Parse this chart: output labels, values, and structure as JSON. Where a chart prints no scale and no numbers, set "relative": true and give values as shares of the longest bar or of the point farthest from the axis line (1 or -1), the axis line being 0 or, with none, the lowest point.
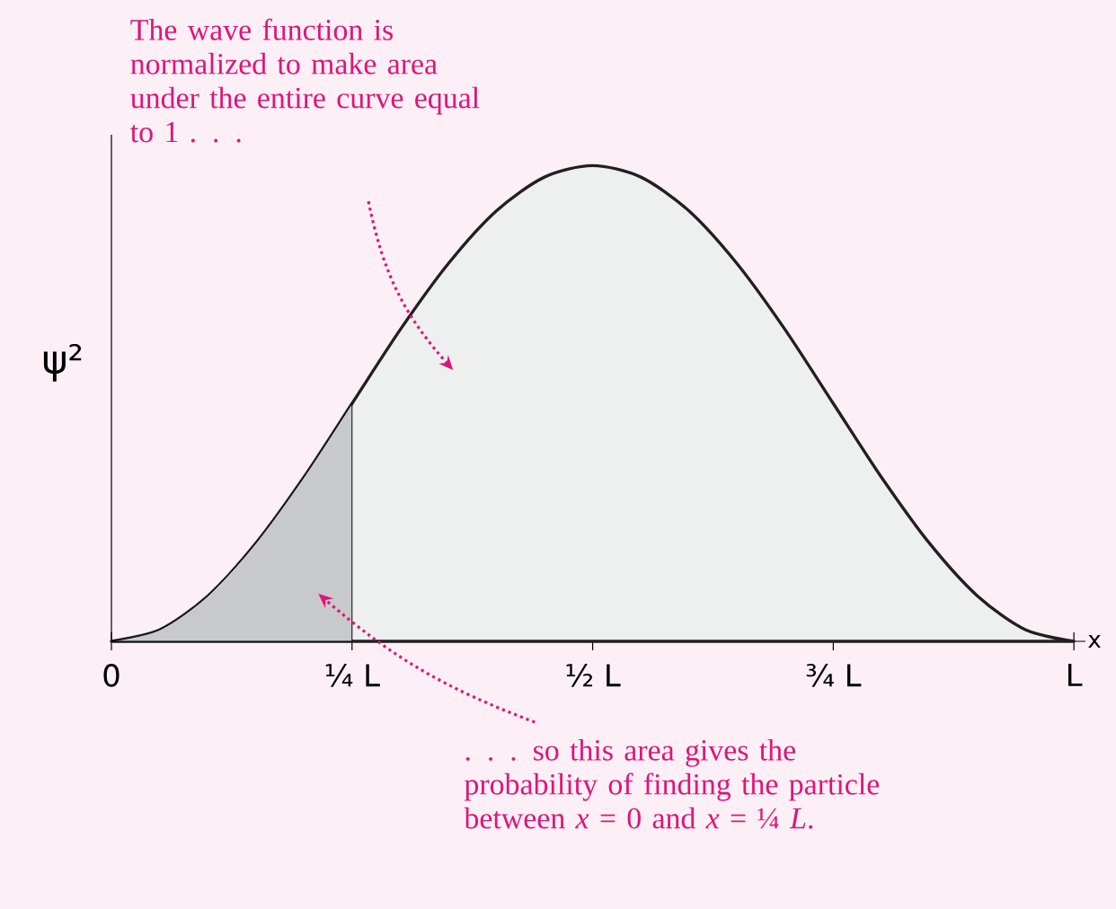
{
  "chart_data": {
    "type": "area",
    "relative": true,
    "xlabel": "x",
    "ylabel": "ψ²",
    "categories": [
      "0",
      null,
      null,
      null,
      null,
      "¼ L",
      null,
      null,
      null,
      null,
      "½ L",
      null,
      null,
      null,
      null,
      "¾ L",
      null,
      null,
      null,
      null,
      "L"
    ],
    "series": [
      {
        "color": "#eef0ef",
        "values": [
          0,
          0.024,
          0.095,
          0.206,
          0.345,
          0.5,
          0.655,
          0.794,
          0.905,
          0.976,
          1,
          0.976,
          0.905,
          0.794,
          0.655,
          0.5,
          0.345,
          0.206,
          0.095,
          0.024,
          0
        ]
      },
      {
        "color": "#c8c9cb",
        "values": [
          0,
          0.024,
          0.095,
          0.206,
          0.345,
          0.5,
          null,
          null,
          null,
          null,
          null,
          null,
          null,
          null,
          null,
          null,
          null,
          null,
          null,
          null,
          null
        ]
      }
    ],
    "annotations": [
      "The wave function is normalized to make area under the entire curve equal to 1 . . .",
      ". . . so this area gives the probability of finding the particle between *x* = 0 and *x* = ¼ *L*."
    ]
  }
}
